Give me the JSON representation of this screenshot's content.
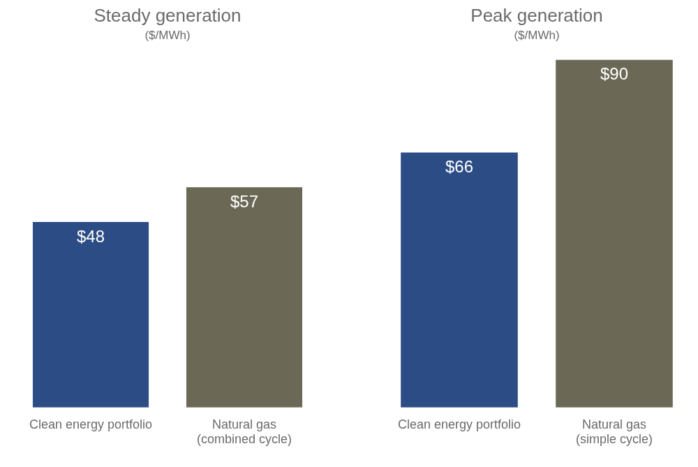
{
  "chart_data": [
    {
      "type": "bar",
      "title": "Steady generation",
      "subtitle": "($/MWh)",
      "categories": [
        "Clean energy portfolio",
        "Natural gas (combined cycle)"
      ],
      "values": [
        48,
        57
      ],
      "value_labels": [
        "$48",
        "$57"
      ],
      "colors": [
        "#2b4c84",
        "#6b6956"
      ],
      "ylim": [
        0,
        90
      ],
      "grid": false,
      "data_labels": true,
      "tick_labels": "x"
    },
    {
      "type": "bar",
      "title": "Peak generation",
      "subtitle": "($/MWh)",
      "categories": [
        "Clean energy portfolio",
        "Natural gas (simple cycle)"
      ],
      "values": [
        66,
        90
      ],
      "value_labels": [
        "$66",
        "$90"
      ],
      "colors": [
        "#2b4c84",
        "#6b6956"
      ],
      "ylim": [
        0,
        90
      ],
      "grid": false,
      "data_labels": true,
      "tick_labels": "x"
    }
  ]
}
